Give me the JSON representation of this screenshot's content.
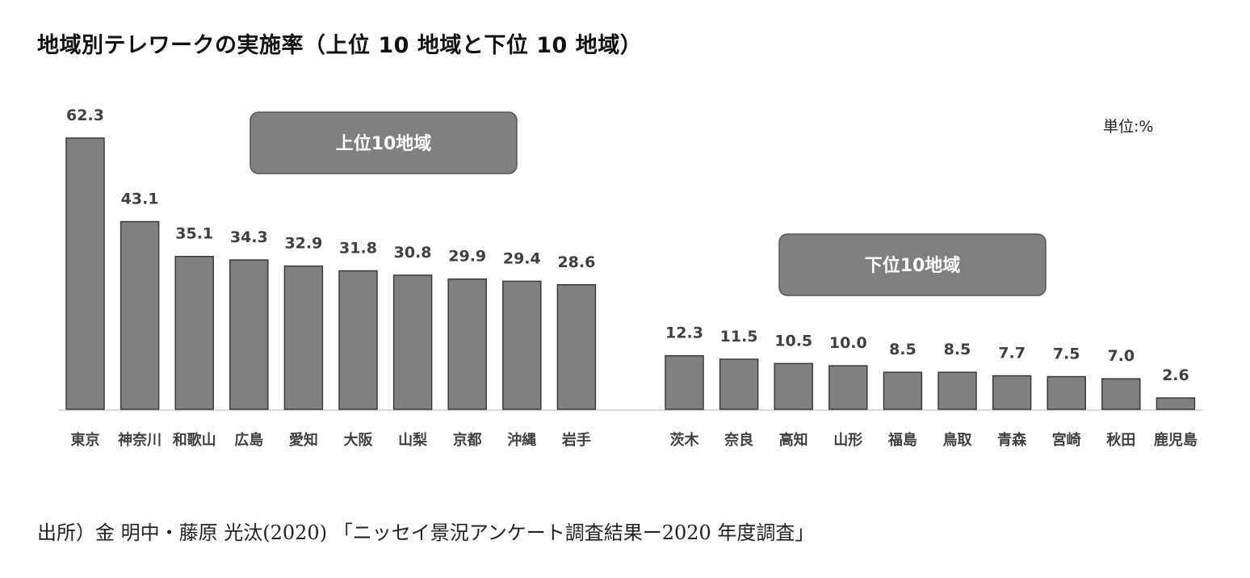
{
  "title": "地域別テレワークの実施率（上位 10 地域と下位 10 地域）",
  "unit_label": "単位:%",
  "source": "出所）金 明中・藤原 光汰(2020) 「ニッセイ景況アンケート調査結果ー2020 年度調査」",
  "colors": {
    "bar": "#808080",
    "bar_stroke": "#3a3a3a",
    "label_box": "#808080",
    "text": "#404040"
  },
  "chart_data": {
    "type": "bar",
    "groups": [
      {
        "label": "上位10地域",
        "categories": [
          "東京",
          "神奈川",
          "和歌山",
          "広島",
          "愛知",
          "大阪",
          "山梨",
          "京都",
          "沖縄",
          "岩手"
        ],
        "values": [
          62.3,
          43.1,
          35.1,
          34.3,
          32.9,
          31.8,
          30.8,
          29.9,
          29.4,
          28.6
        ]
      },
      {
        "label": "下位10地域",
        "categories": [
          "茨木",
          "奈良",
          "高知",
          "山形",
          "福島",
          "鳥取",
          "青森",
          "宮崎",
          "秋田",
          "鹿児島"
        ],
        "values": [
          12.3,
          11.5,
          10.5,
          10.0,
          8.5,
          8.5,
          7.7,
          7.5,
          7.0,
          2.6
        ]
      }
    ],
    "value_labels": [
      "62.3",
      "43.1",
      "35.1",
      "34.3",
      "32.9",
      "31.8",
      "30.8",
      "29.9",
      "29.4",
      "28.6",
      "12.3",
      "11.5",
      "10.5",
      "10.0",
      "8.5",
      "8.5",
      "7.7",
      "7.5",
      "7.0",
      "2.6"
    ],
    "ylim": [
      0,
      62.3
    ],
    "grid": false,
    "legend": "none"
  }
}
